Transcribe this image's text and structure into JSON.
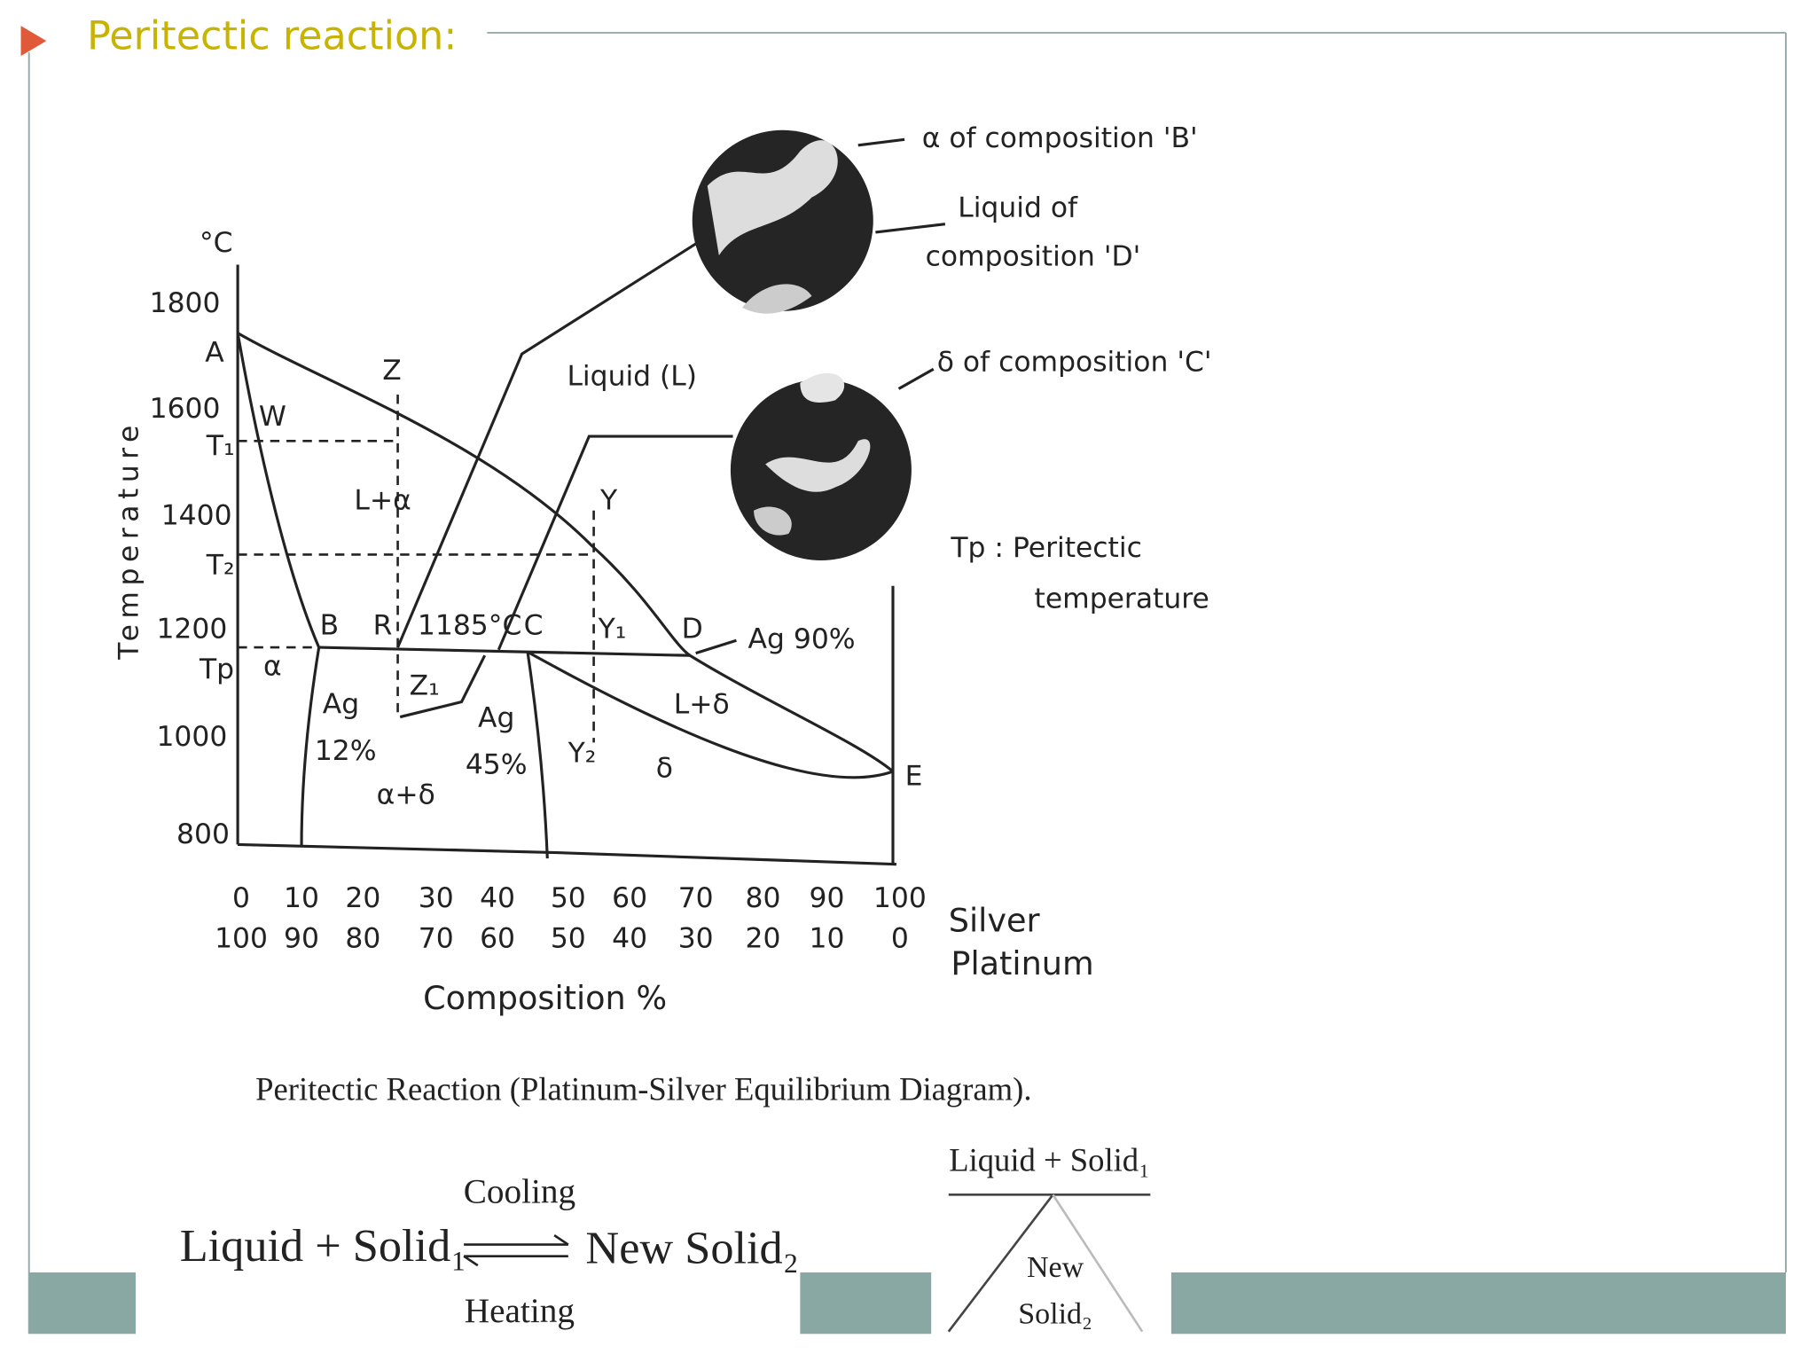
{
  "header": {
    "title": "Peritectic reaction:"
  },
  "diagram": {
    "y_unit": "°C",
    "y_axis_label": "Temperature",
    "y_labels": [
      "1800",
      "1600",
      "1400",
      "1200",
      "1000",
      "800"
    ],
    "temp_labels": [
      "T₁",
      "T₂",
      "Tp"
    ],
    "silver": [
      "0",
      "10",
      "20",
      "30",
      "40",
      "50",
      "60",
      "70",
      "80",
      "90",
      "100"
    ],
    "platinum": [
      "100",
      "90",
      "80",
      "70",
      "60",
      "50",
      "40",
      "30",
      "20",
      "10",
      "0"
    ],
    "silver_label": "Silver",
    "platinum_label": "Platinum",
    "x_axis_label": "Composition %",
    "points": [
      "A",
      "W",
      "Z",
      "B",
      "R",
      "C",
      "Y",
      "Y₁",
      "D",
      "E",
      "Z₁",
      "Y₂"
    ],
    "regions": [
      "Liquid (L)",
      "L+α",
      "α",
      "α+δ",
      "L+δ",
      "δ"
    ],
    "annotations": [
      "1185°C",
      "Ag",
      "12%",
      "Ag",
      "45%",
      "Ag 90%"
    ],
    "callouts": [
      "α of composition 'B'",
      "Liquid of",
      "composition 'D'",
      "δ of composition 'C'"
    ],
    "tp_note": [
      "Tp : Peritectic",
      "temperature"
    ]
  },
  "caption": "Peritectic Reaction (Platinum-Silver Equilibrium Diagram).",
  "equation": {
    "left": "Liquid + Solid₁",
    "top": "Cooling",
    "bottom": "Heating",
    "right": "New Solid₂"
  },
  "tree": {
    "top": "Liquid + Solid₁",
    "bottom": [
      "New",
      "Solid₂"
    ]
  }
}
